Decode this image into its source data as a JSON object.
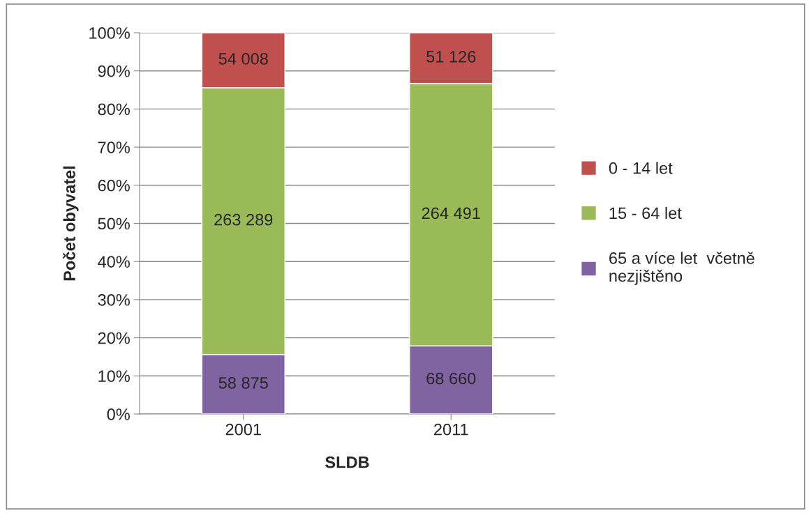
{
  "chart_data": {
    "type": "bar",
    "stacked": true,
    "xlabel": "SLDB",
    "ylabel": "Počet obyvatel",
    "categories": [
      "2001",
      "2011"
    ],
    "series": [
      {
        "name": "65 a více let  včetně\nnezjištěno",
        "color": "#8064a2",
        "values": [
          15.6,
          17.9
        ]
      },
      {
        "name": "15 - 64 let",
        "color": "#9bbb59",
        "values": [
          70.0,
          68.8
        ]
      },
      {
        "name": "0 - 14 let",
        "color": "#c0504d",
        "values": [
          14.4,
          13.3
        ]
      }
    ],
    "annotations": [
      "58 875",
      "263 289",
      "54 008",
      "68 660",
      "264 491",
      "51 126"
    ],
    "ylim": [
      0,
      100
    ],
    "yticks": [
      {
        "value": 0,
        "label": "0%"
      },
      {
        "value": 10,
        "label": "10%"
      },
      {
        "value": 20,
        "label": "20%"
      },
      {
        "value": 30,
        "label": "30%"
      },
      {
        "value": 40,
        "label": "40%"
      },
      {
        "value": 50,
        "label": "50%"
      },
      {
        "value": 60,
        "label": "60%"
      },
      {
        "value": 70,
        "label": "70%"
      },
      {
        "value": 80,
        "label": "80%"
      },
      {
        "value": 90,
        "label": "90%"
      },
      {
        "value": 100,
        "label": "100%"
      }
    ],
    "grid": "y",
    "legend": "right"
  }
}
